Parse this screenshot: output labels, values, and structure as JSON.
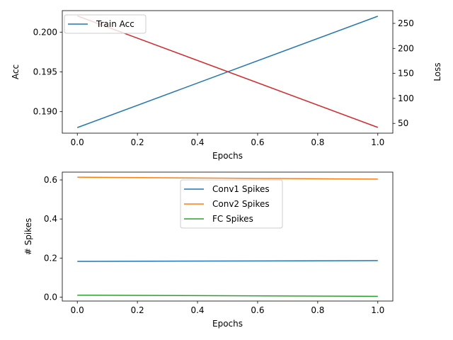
{
  "chart_data": [
    {
      "type": "line",
      "xlabel": "Epochs",
      "ylabel": "Acc",
      "y2label": "Loss",
      "xlim": [
        -0.05,
        1.05
      ],
      "ylim": [
        0.1873,
        0.2027
      ],
      "y2lim": [
        30.5,
        275.5
      ],
      "xticks": [
        0.0,
        0.2,
        0.4,
        0.6,
        0.8,
        1.0
      ],
      "xtick_labels": [
        "0.0",
        "0.2",
        "0.4",
        "0.6",
        "0.8",
        "1.0"
      ],
      "yticks": [
        0.19,
        0.195,
        0.2
      ],
      "ytick_labels": [
        "0.190",
        "0.195",
        "0.200"
      ],
      "y2ticks": [
        50,
        100,
        150,
        200,
        250
      ],
      "y2tick_labels": [
        "50",
        "100",
        "150",
        "200",
        "250"
      ],
      "legend": "top-left",
      "grid": false,
      "series": [
        {
          "name": "Train Acc",
          "axis": "left",
          "color": "#1f77b4",
          "x": [
            0,
            1
          ],
          "y": [
            0.188,
            0.202
          ]
        },
        {
          "axis": "right",
          "color": "#d62728",
          "x": [
            0,
            1
          ],
          "y": [
            265,
            42
          ]
        }
      ]
    },
    {
      "type": "line",
      "xlabel": "Epochs",
      "ylabel": "# Spikes",
      "xlim": [
        -0.05,
        1.05
      ],
      "ylim": [
        -0.02,
        0.64
      ],
      "xticks": [
        0.0,
        0.2,
        0.4,
        0.6,
        0.8,
        1.0
      ],
      "xtick_labels": [
        "0.0",
        "0.2",
        "0.4",
        "0.6",
        "0.8",
        "1.0"
      ],
      "yticks": [
        0.0,
        0.2,
        0.4,
        0.6
      ],
      "ytick_labels": [
        "0.0",
        "0.2",
        "0.4",
        "0.6"
      ],
      "legend": "upper-center",
      "grid": false,
      "series": [
        {
          "name": "Conv1 Spikes",
          "color": "#1f77b4",
          "x": [
            0,
            1
          ],
          "y": [
            0.183,
            0.187
          ]
        },
        {
          "name": "Conv2 Spikes",
          "color": "#ff7f0e",
          "x": [
            0,
            1
          ],
          "y": [
            0.614,
            0.604
          ]
        },
        {
          "name": "FC Spikes",
          "color": "#2ca02c",
          "x": [
            0,
            1
          ],
          "y": [
            0.01,
            0.004
          ]
        }
      ]
    }
  ]
}
